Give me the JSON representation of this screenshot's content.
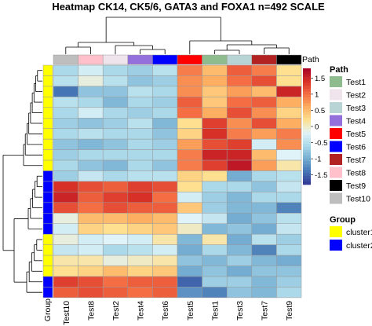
{
  "chart_data": {
    "type": "heatmap",
    "title": "Heatmap CK14, CK5/6, GATA3 and FOXA1 n=492 SCALE",
    "columns": [
      "Test10",
      "Test8",
      "Test2",
      "Test4",
      "Test6",
      "Test5",
      "Test1",
      "Test3",
      "Test7",
      "Test9"
    ],
    "column_annotation": {
      "name": "Path",
      "values": [
        "Test10",
        "Test8",
        "Test2",
        "Test4",
        "Test6",
        "Test5",
        "Test1",
        "Test3",
        "Test7",
        "Test9"
      ]
    },
    "row_annotation": {
      "name": "Group",
      "values": [
        "cluster1",
        "cluster1",
        "cluster1",
        "cluster1",
        "cluster1",
        "cluster1",
        "cluster1",
        "cluster1",
        "cluster1",
        "cluster1",
        "cluster2",
        "cluster2",
        "cluster2",
        "cluster2",
        "cluster2",
        "cluster2",
        "cluster1",
        "cluster1",
        "cluster1",
        "cluster1",
        "cluster2",
        "cluster2"
      ]
    },
    "values": [
      [
        -0.6,
        -0.3,
        -0.6,
        -0.7,
        -0.5,
        0.9,
        0.5,
        1.1,
        0.9,
        0.2
      ],
      [
        -0.5,
        -0.1,
        -0.5,
        -0.8,
        -0.7,
        0.8,
        0.6,
        1.0,
        1.2,
        0.2
      ],
      [
        -1.4,
        -0.8,
        -0.8,
        -0.5,
        -0.6,
        0.8,
        0.4,
        0.7,
        0.5,
        1.5
      ],
      [
        -0.5,
        -0.6,
        -0.9,
        -0.6,
        -0.7,
        1.1,
        0.4,
        1.0,
        1.1,
        0.6
      ],
      [
        -0.6,
        -0.3,
        -0.6,
        -0.7,
        -0.6,
        1.0,
        0.6,
        1.2,
        0.8,
        0.3
      ],
      [
        -0.7,
        -0.8,
        -0.7,
        -0.5,
        -0.9,
        0.2,
        1.3,
        0.8,
        1.2,
        0.6
      ],
      [
        -0.6,
        -0.5,
        -0.6,
        -0.6,
        -0.8,
        0.3,
        1.4,
        0.9,
        0.7,
        0.9
      ],
      [
        -0.8,
        -0.9,
        -0.8,
        -0.6,
        -0.7,
        0.7,
        1.2,
        1.3,
        -0.3,
        0.8
      ],
      [
        -0.7,
        -0.6,
        -0.6,
        -0.6,
        -0.6,
        0.9,
        1.5,
        1.5,
        0.5,
        -0.2
      ],
      [
        -0.6,
        -0.8,
        -0.9,
        -0.6,
        -0.8,
        0.9,
        1.3,
        1.6,
        0.7,
        0.1
      ],
      [
        -0.7,
        -0.4,
        -0.6,
        -0.5,
        -0.5,
        0.3,
        0.2,
        -1.0,
        -0.6,
        -0.5
      ],
      [
        1.4,
        1.2,
        1.1,
        1.3,
        1.2,
        0.2,
        -0.6,
        -0.6,
        -0.8,
        -0.4
      ],
      [
        1.5,
        1.1,
        1.3,
        1.4,
        1.0,
        -0.3,
        -0.7,
        -0.9,
        -0.6,
        -0.6
      ],
      [
        1.2,
        1.0,
        1.2,
        1.1,
        1.1,
        0.4,
        -0.7,
        -0.9,
        -0.9,
        -1.3
      ],
      [
        -0.1,
        0.5,
        0.5,
        0.6,
        0.5,
        -0.2,
        -0.4,
        -1.0,
        -0.8,
        -0.5
      ],
      [
        -0.3,
        0.3,
        0.2,
        0.3,
        0.4,
        0.0,
        -0.9,
        -0.8,
        -1.0,
        -0.4
      ],
      [
        -0.1,
        -0.3,
        -0.2,
        -0.3,
        0.1,
        -0.9,
        0.1,
        -1.0,
        -0.5,
        -0.7
      ],
      [
        -0.4,
        -0.3,
        -0.6,
        -0.5,
        -0.3,
        -1.0,
        -0.6,
        -0.9,
        -1.3,
        -0.6
      ],
      [
        0.1,
        0.1,
        -0.1,
        0.0,
        0.1,
        -0.8,
        -0.9,
        -0.7,
        -0.9,
        -1.0
      ],
      [
        0.2,
        0.3,
        0.5,
        0.3,
        0.4,
        -1.0,
        -0.8,
        -1.0,
        -0.8,
        -0.8
      ],
      [
        1.3,
        1.2,
        1.0,
        1.1,
        1.1,
        -1.5,
        -0.7,
        -0.7,
        -0.9,
        -0.7
      ],
      [
        1.1,
        1.2,
        1.1,
        1.0,
        1.1,
        -1.2,
        -1.3,
        -0.8,
        -0.9,
        -0.6
      ]
    ],
    "color_scale": {
      "min": -1.8,
      "max": 1.8,
      "stops": [
        "#313695",
        "#4575b4",
        "#74add1",
        "#abd9e9",
        "#e0f3f8",
        "#fee090",
        "#fdae61",
        "#f46d43",
        "#d73027",
        "#a50026"
      ],
      "ticks": [
        1.5,
        1,
        0.5,
        0,
        -0.5,
        -1,
        -1.5
      ]
    },
    "legend_path": {
      "title": "Path",
      "entries": [
        {
          "label": "Test1",
          "color": "#8fbc8f"
        },
        {
          "label": "Test2",
          "color": "#f0e4ec"
        },
        {
          "label": "Test3",
          "color": "#b8d4d4"
        },
        {
          "label": "Test4",
          "color": "#9370db"
        },
        {
          "label": "Test5",
          "color": "#ff0000"
        },
        {
          "label": "Test6",
          "color": "#0000ff"
        },
        {
          "label": "Test7",
          "color": "#b22222"
        },
        {
          "label": "Test8",
          "color": "#ffc0cb"
        },
        {
          "label": "Test9",
          "color": "#000000"
        },
        {
          "label": "Test10",
          "color": "#bebebe"
        }
      ]
    },
    "legend_group": {
      "title": "Group",
      "entries": [
        {
          "label": "cluster1",
          "color": "#ffff00"
        },
        {
          "label": "cluster2",
          "color": "#0000ff"
        }
      ]
    }
  }
}
